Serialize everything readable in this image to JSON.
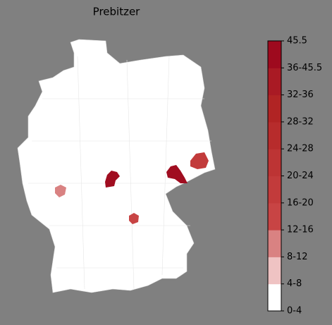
{
  "title": "Prebitzer",
  "colorbar": {
    "labels": [
      "0-4",
      "4-8",
      "8-12",
      "12-16",
      "16-20",
      "20-24",
      "24-28",
      "28-32",
      "32-36",
      "36-45.5",
      "45.5"
    ],
    "colors": [
      "#ffffff",
      "#efc3c3",
      "#d98282",
      "#c84444",
      "#c23b3b",
      "#bd3434",
      "#b72c2c",
      "#b12424",
      "#a91a24",
      "#9e0a1e"
    ]
  }
}
